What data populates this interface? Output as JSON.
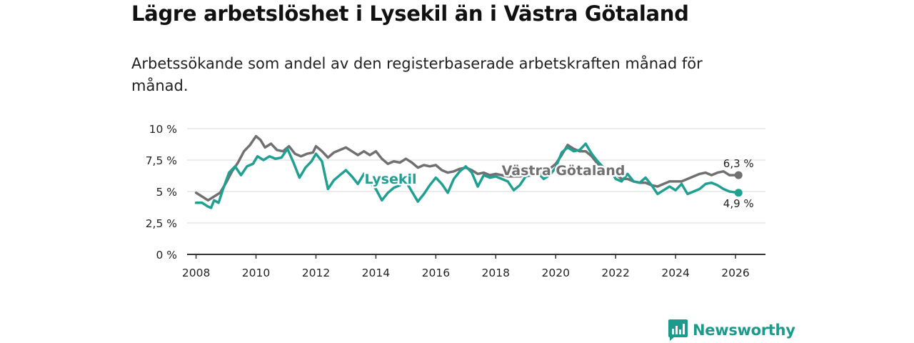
{
  "title": "Lägre arbetslöshet i Lysekil än i Västra Götaland",
  "subtitle": "Arbetssökande som andel av den registerbaserade arbetskraften månad för månad.",
  "brand": {
    "name": "Newsworthy",
    "icon": "newsworthy-logo-icon",
    "color": "#1c9a8c"
  },
  "chart_data": {
    "type": "line",
    "ylim": [
      0,
      10
    ],
    "xlim": [
      2007.7,
      2027.0
    ],
    "yticks": [
      0,
      2.5,
      5,
      7.5,
      10
    ],
    "ytick_labels": [
      "0 %",
      "2,5 %",
      "5 %",
      "7,5 %",
      "10 %"
    ],
    "xticks": [
      2008,
      2010,
      2012,
      2014,
      2016,
      2018,
      2020,
      2022,
      2024,
      2026
    ],
    "xtick_labels": [
      "2008",
      "2010",
      "2012",
      "2014",
      "2016",
      "2018",
      "2020",
      "2022",
      "2024",
      "2026"
    ],
    "grid": true,
    "series": [
      {
        "name": "Västra Götaland",
        "color": "#707070",
        "end_label": "6,3 %",
        "x": [
          2008.0,
          2008.2,
          2008.4,
          2008.6,
          2008.8,
          2009.0,
          2009.2,
          2009.4,
          2009.6,
          2009.8,
          2010.0,
          2010.15,
          2010.3,
          2010.5,
          2010.7,
          2010.9,
          2011.1,
          2011.3,
          2011.5,
          2011.7,
          2011.9,
          2012.0,
          2012.2,
          2012.4,
          2012.6,
          2012.8,
          2013.0,
          2013.2,
          2013.4,
          2013.6,
          2013.8,
          2014.0,
          2014.2,
          2014.4,
          2014.6,
          2014.8,
          2015.0,
          2015.2,
          2015.4,
          2015.6,
          2015.8,
          2016.0,
          2016.2,
          2016.4,
          2016.6,
          2016.8,
          2017.0,
          2017.2,
          2017.4,
          2017.6,
          2017.8,
          2018.0,
          2018.2,
          2018.4,
          2018.6,
          2018.8,
          2019.0,
          2019.2,
          2019.4,
          2019.6,
          2019.8,
          2020.0,
          2020.2,
          2020.4,
          2020.6,
          2020.8,
          2021.0,
          2021.2,
          2021.4,
          2021.6,
          2021.8,
          2022.0,
          2022.2,
          2022.4,
          2022.6,
          2022.8,
          2023.0,
          2023.2,
          2023.4,
          2023.6,
          2023.8,
          2024.0,
          2024.2,
          2024.4,
          2024.6,
          2024.8,
          2025.0,
          2025.2,
          2025.4,
          2025.6,
          2025.8,
          2026.1
        ],
        "y": [
          4.9,
          4.6,
          4.3,
          4.6,
          4.9,
          5.7,
          6.6,
          7.3,
          8.2,
          8.7,
          9.4,
          9.1,
          8.5,
          8.8,
          8.3,
          8.2,
          8.6,
          8.0,
          7.8,
          8.0,
          8.1,
          8.6,
          8.2,
          7.7,
          8.1,
          8.3,
          8.5,
          8.2,
          7.9,
          8.2,
          7.9,
          8.2,
          7.6,
          7.2,
          7.4,
          7.3,
          7.6,
          7.3,
          6.9,
          7.1,
          7.0,
          7.1,
          6.7,
          6.5,
          6.6,
          6.8,
          6.9,
          6.7,
          6.4,
          6.5,
          6.3,
          6.4,
          6.3,
          6.2,
          6.2,
          6.2,
          6.3,
          6.3,
          6.3,
          6.6,
          6.8,
          7.2,
          7.9,
          8.7,
          8.4,
          8.2,
          8.2,
          7.8,
          7.2,
          6.9,
          6.7,
          6.4,
          6.0,
          6.0,
          5.8,
          5.7,
          5.7,
          5.5,
          5.4,
          5.6,
          5.8,
          5.8,
          5.8,
          6.0,
          6.2,
          6.4,
          6.5,
          6.3,
          6.5,
          6.6,
          6.3,
          6.3
        ]
      },
      {
        "name": "Lysekil",
        "color": "#1fa092",
        "end_label": "4,9 %",
        "x": [
          2008.0,
          2008.2,
          2008.4,
          2008.5,
          2008.6,
          2008.75,
          2008.9,
          2009.1,
          2009.3,
          2009.5,
          2009.7,
          2009.9,
          2010.05,
          2010.25,
          2010.45,
          2010.65,
          2010.85,
          2011.05,
          2011.25,
          2011.45,
          2011.65,
          2011.85,
          2012.0,
          2012.2,
          2012.4,
          2012.6,
          2012.8,
          2013.0,
          2013.2,
          2013.4,
          2013.6,
          2013.8,
          2014.0,
          2014.2,
          2014.4,
          2014.6,
          2014.8,
          2015.0,
          2015.2,
          2015.4,
          2015.6,
          2015.8,
          2016.0,
          2016.2,
          2016.4,
          2016.6,
          2016.8,
          2017.0,
          2017.2,
          2017.4,
          2017.6,
          2017.8,
          2018.0,
          2018.2,
          2018.4,
          2018.6,
          2018.8,
          2019.0,
          2019.2,
          2019.4,
          2019.6,
          2019.8,
          2020.0,
          2020.2,
          2020.4,
          2020.6,
          2020.8,
          2021.0,
          2021.2,
          2021.4,
          2021.6,
          2021.8,
          2022.0,
          2022.2,
          2022.4,
          2022.6,
          2022.8,
          2023.0,
          2023.2,
          2023.4,
          2023.6,
          2023.8,
          2024.0,
          2024.2,
          2024.4,
          2024.6,
          2024.8,
          2025.0,
          2025.2,
          2025.4,
          2025.6,
          2025.8,
          2026.1
        ],
        "y": [
          4.1,
          4.1,
          3.8,
          3.7,
          4.3,
          4.1,
          5.2,
          6.5,
          7.0,
          6.3,
          7.0,
          7.2,
          7.8,
          7.5,
          7.8,
          7.6,
          7.7,
          8.4,
          7.3,
          6.1,
          6.9,
          7.4,
          8.0,
          7.4,
          5.2,
          5.9,
          6.3,
          6.7,
          6.2,
          5.6,
          6.4,
          5.7,
          5.2,
          4.3,
          4.9,
          5.3,
          5.5,
          5.8,
          5.0,
          4.2,
          4.8,
          5.5,
          6.1,
          5.6,
          4.9,
          6.0,
          6.6,
          7.0,
          6.5,
          5.4,
          6.3,
          6.1,
          6.2,
          6.0,
          5.8,
          5.1,
          5.5,
          6.2,
          6.3,
          6.5,
          6.0,
          6.3,
          6.9,
          8.1,
          8.5,
          8.2,
          8.3,
          8.8,
          8.0,
          7.4,
          6.9,
          6.8,
          6.0,
          5.8,
          6.4,
          5.8,
          5.7,
          6.1,
          5.5,
          4.8,
          5.1,
          5.4,
          5.1,
          5.6,
          4.8,
          5.0,
          5.2,
          5.6,
          5.7,
          5.5,
          5.2,
          5.0,
          4.9
        ]
      }
    ]
  }
}
